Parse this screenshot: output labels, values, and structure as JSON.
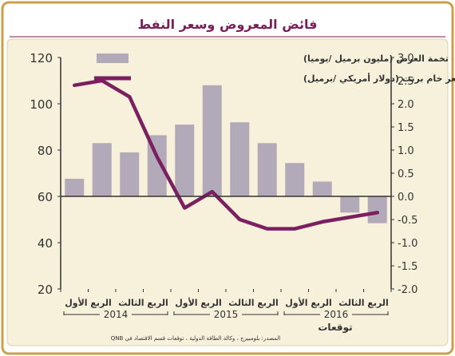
{
  "title": "فائض المعروض وسعر النفط",
  "source": "المصدر: بلومبيرج ، وكالة الطاقة الدولية ، توقعات قسم الاقتصاد في QNB",
  "colors": {
    "frame_border": "#c8a24a",
    "panel_bg": "#f7f0db",
    "title_color": "#7a1e5a",
    "title_line": "#7a1e5a",
    "bar": "#b3aab9",
    "line": "#7b1f60",
    "text": "#333333"
  },
  "chart_data": {
    "type": "bar+line",
    "categories": [
      "الربع الأول 2014",
      "الربع الثاني 2014",
      "الربع الثالث 2014",
      "الربع الرابع 2014",
      "الربع الأول 2015",
      "الربع الثاني 2015",
      "الربع الثالث 2015",
      "الربع الرابع 2015",
      "الربع الأول 2016",
      "الربع الثاني 2016",
      "الربع الثالث 2016",
      "الربع الرابع 2016"
    ],
    "x_tick_labels": [
      "الربع الأول",
      "الربع الثالث",
      "الربع الأول",
      "الربع الثالث",
      "الربع الأول",
      "الربع الثالث"
    ],
    "year_labels": [
      "2014",
      "2015",
      "2016"
    ],
    "forecast_label": "توقعات",
    "y_left_ticks": [
      "120",
      "100",
      "80",
      "60",
      "40",
      "20"
    ],
    "y_right_ticks": [
      "3.0",
      "2.5",
      "2.0",
      "1.5",
      "1.0",
      "0.5",
      "0.0",
      "-0.5",
      "-1.0",
      "-1.5",
      "-2.0"
    ],
    "y_left_range": [
      20,
      120
    ],
    "y_right_range": [
      -2.0,
      3.0
    ],
    "series": [
      {
        "name": "تخمة العرض (مليون برميل /يوميا)",
        "type": "bar",
        "axis": "right",
        "values": [
          0.38,
          1.15,
          0.95,
          1.32,
          1.55,
          2.4,
          1.6,
          1.15,
          0.72,
          0.32,
          -0.35,
          -0.58
        ]
      },
      {
        "name": "سعر خام برنت (دولار أمريكي /برميل)",
        "type": "line",
        "axis": "left",
        "values": [
          108,
          110,
          103,
          77,
          55,
          62,
          50,
          46,
          46,
          49,
          51,
          53
        ]
      }
    ],
    "grid": false,
    "legend_placement": "top-right"
  }
}
